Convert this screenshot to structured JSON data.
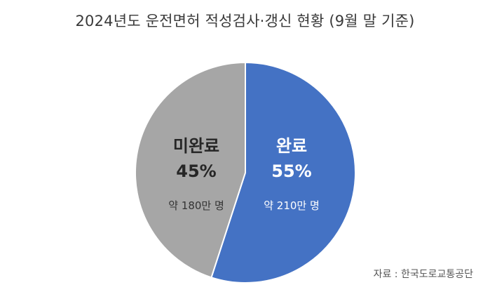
{
  "chart_data": {
    "type": "pie",
    "title": "2024년도 운전면허 적성검사·갱신 현황 (9월 말 기준)",
    "slices": [
      {
        "name": "완료",
        "value": 55,
        "percent_label": "55%",
        "count_label": "약 210만 명",
        "color": "#4472c4",
        "text_color": "#ffffff",
        "sub_text_color": "#ffffff"
      },
      {
        "name": "미완료",
        "value": 45,
        "percent_label": "45%",
        "count_label": "약 180만 명",
        "color": "#a6a6a6",
        "text_color": "#262626",
        "sub_text_color": "#333333"
      }
    ],
    "source": "자료 : 한국도로교통공단"
  }
}
